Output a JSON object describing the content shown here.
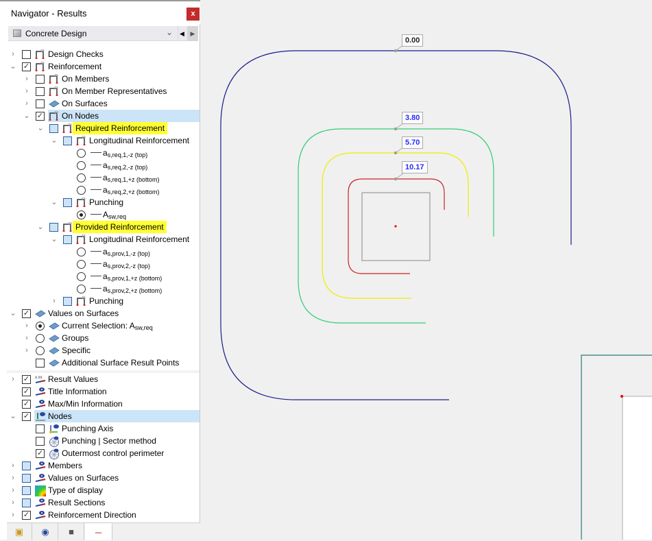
{
  "navigator": {
    "title": "Navigator - Results",
    "close_label": "x",
    "module": "Concrete Design"
  },
  "tree": [
    {
      "lvl": 0,
      "chev": "right",
      "ctl": "cb",
      "state": "off",
      "icon": "reinforcement-icon",
      "text": "Design Checks"
    },
    {
      "lvl": 0,
      "chev": "down",
      "ctl": "cb",
      "state": "on",
      "icon": "reinforcement-icon",
      "text": "Reinforcement"
    },
    {
      "lvl": 1,
      "chev": "right",
      "ctl": "cb",
      "state": "off",
      "icon": "reinforcement-icon",
      "text": "On Members"
    },
    {
      "lvl": 1,
      "chev": "right",
      "ctl": "cb",
      "state": "off",
      "icon": "reinforcement-icon",
      "text": "On Member Representatives"
    },
    {
      "lvl": 1,
      "chev": "right",
      "ctl": "cb",
      "state": "off",
      "icon": "surface-icon",
      "text": "On Surfaces"
    },
    {
      "lvl": 1,
      "chev": "down",
      "ctl": "cb",
      "state": "on",
      "icon": "reinforcement-icon",
      "text": "On Nodes",
      "selected": true
    },
    {
      "lvl": 2,
      "chev": "down",
      "ctl": "cb",
      "state": "part",
      "icon": "reinforcement-icon",
      "text": "Required Reinforcement",
      "highlight": true
    },
    {
      "lvl": 3,
      "chev": "down",
      "ctl": "cb",
      "state": "part",
      "icon": "reinforcement-icon",
      "text": "Longitudinal Reinforcement"
    },
    {
      "lvl": 4,
      "ctl": "rad",
      "state": "off",
      "line": true,
      "text": "a",
      "sub": "s,req,1,-z (top)"
    },
    {
      "lvl": 4,
      "ctl": "rad",
      "state": "off",
      "line": true,
      "text": "a",
      "sub": "s,req,2,-z (top)"
    },
    {
      "lvl": 4,
      "ctl": "rad",
      "state": "off",
      "line": true,
      "text": "a",
      "sub": "s,req,1,+z (bottom)"
    },
    {
      "lvl": 4,
      "ctl": "rad",
      "state": "off",
      "line": true,
      "text": "a",
      "sub": "s,req,2,+z (bottom)"
    },
    {
      "lvl": 3,
      "chev": "down",
      "ctl": "cb",
      "state": "part",
      "icon": "reinforcement-icon",
      "text": "Punching"
    },
    {
      "lvl": 4,
      "ctl": "rad",
      "state": "on",
      "line": true,
      "text": "A",
      "sub": "sw,req"
    },
    {
      "lvl": 2,
      "chev": "down",
      "ctl": "cb",
      "state": "part",
      "icon": "reinforcement-icon",
      "text": "Provided Reinforcement",
      "highlight": true
    },
    {
      "lvl": 3,
      "chev": "down",
      "ctl": "cb",
      "state": "part",
      "icon": "reinforcement-icon",
      "text": "Longitudinal Reinforcement"
    },
    {
      "lvl": 4,
      "ctl": "rad",
      "state": "off",
      "line": true,
      "text": "a",
      "sub": "s,prov,1,-z (top)"
    },
    {
      "lvl": 4,
      "ctl": "rad",
      "state": "off",
      "line": true,
      "text": "a",
      "sub": "s,prov,2,-z (top)"
    },
    {
      "lvl": 4,
      "ctl": "rad",
      "state": "off",
      "line": true,
      "text": "a",
      "sub": "s,prov,1,+z (bottom)"
    },
    {
      "lvl": 4,
      "ctl": "rad",
      "state": "off",
      "line": true,
      "text": "a",
      "sub": "s,prov,2,+z (bottom)"
    },
    {
      "lvl": 3,
      "chev": "right",
      "ctl": "cb",
      "state": "part",
      "icon": "reinforcement-icon",
      "text": "Punching"
    },
    {
      "lvl": 0,
      "chev": "down",
      "ctl": "cb",
      "state": "on",
      "icon": "surface-icon",
      "text": "Values on Surfaces"
    },
    {
      "lvl": 1,
      "chev": "right",
      "ctl": "rad",
      "state": "on",
      "icon": "surface-icon",
      "text": "Current Selection: A",
      "sub": "sw,req"
    },
    {
      "lvl": 1,
      "chev": "right",
      "ctl": "rad",
      "state": "off",
      "icon": "surface-icon",
      "text": "Groups"
    },
    {
      "lvl": 1,
      "chev": "right",
      "ctl": "rad",
      "state": "off",
      "icon": "surface-icon",
      "text": "Specific"
    },
    {
      "lvl": 1,
      "ctl": "cb",
      "state": "off",
      "icon": "surface-icon",
      "text": "Additional Surface Result Points"
    },
    {
      "lvl": 0,
      "chev": "right",
      "ctl": "cb",
      "state": "on",
      "icon": "result-values-icon",
      "text": "Result Values",
      "gap": true
    },
    {
      "lvl": 0,
      "ctl": "cb",
      "state": "on",
      "icon": "display-eye-icon",
      "text": "Title Information"
    },
    {
      "lvl": 0,
      "ctl": "cb",
      "state": "on",
      "icon": "display-eye-icon",
      "text": "Max/Min Information"
    },
    {
      "lvl": 0,
      "chev": "down",
      "ctl": "cb",
      "state": "on",
      "icon": "node-eye-icon",
      "text": "Nodes",
      "selected": true
    },
    {
      "lvl": 1,
      "ctl": "cb",
      "state": "off",
      "icon": "punching-axis-icon",
      "text": "Punching Axis"
    },
    {
      "lvl": 1,
      "ctl": "cb",
      "state": "off",
      "icon": "sector-icon",
      "text": "Punching | Sector method"
    },
    {
      "lvl": 1,
      "ctl": "cb",
      "state": "on",
      "icon": "sector-icon",
      "text": "Outermost control perimeter"
    },
    {
      "lvl": 0,
      "chev": "right",
      "ctl": "cb",
      "state": "part",
      "icon": "display-eye-icon",
      "text": "Members"
    },
    {
      "lvl": 0,
      "chev": "right",
      "ctl": "cb",
      "state": "part",
      "icon": "display-eye-icon",
      "text": "Values on Surfaces"
    },
    {
      "lvl": 0,
      "chev": "right",
      "ctl": "cb",
      "state": "part",
      "icon": "color-scale-icon",
      "text": "Type of display"
    },
    {
      "lvl": 0,
      "chev": "right",
      "ctl": "cb",
      "state": "part",
      "icon": "display-eye-icon",
      "text": "Result Sections"
    },
    {
      "lvl": 0,
      "chev": "right",
      "ctl": "cb",
      "state": "on",
      "icon": "display-eye-icon",
      "text": "Reinforcement Direction"
    }
  ],
  "tabs": [
    {
      "icon": "data-icon"
    },
    {
      "icon": "eye-icon"
    },
    {
      "icon": "camera-icon"
    },
    {
      "icon": "results-icon",
      "active": true
    }
  ],
  "viewport": {
    "labels": [
      {
        "text": "0.00",
        "color": "#222222"
      },
      {
        "text": "3.80",
        "color": "#2a2aff"
      },
      {
        "text": "5.70",
        "color": "#2a2aff"
      },
      {
        "text": "10.17",
        "color": "#2a2aff"
      }
    ],
    "perimeter_colors": [
      "#1a1a8c",
      "#33cc77",
      "#eeee00",
      "#cc2222"
    ]
  }
}
